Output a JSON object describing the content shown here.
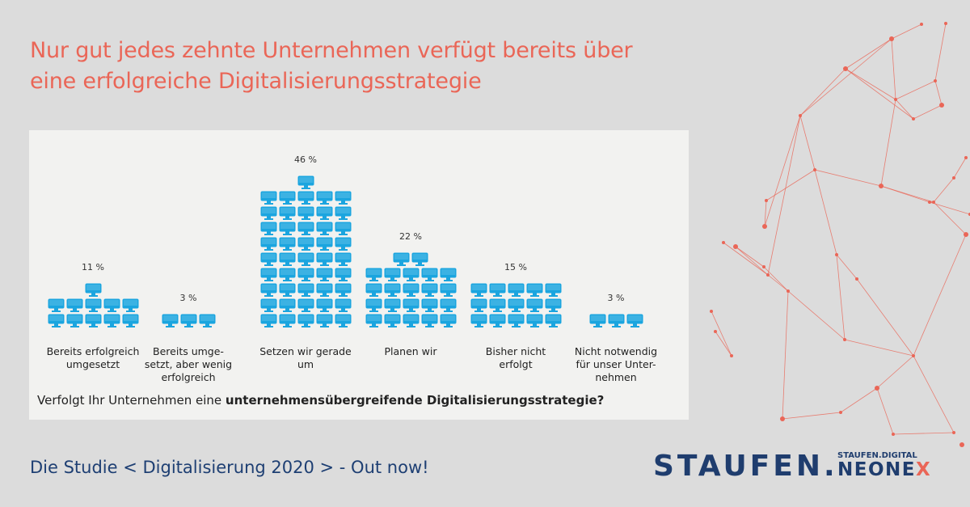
{
  "title_lines": [
    "Nur gut jedes zehnte Unternehmen verfügt bereits über",
    "eine erfolgreiche Digitalisierungsstrategie"
  ],
  "question": {
    "prefix": "Verfolgt Ihr Unternehmen eine ",
    "bold": "unternehmensübergreifende Digitalisierungsstrategie?"
  },
  "footer": "Die Studie < Digitalisierung 2020 > - Out now!",
  "logo": {
    "staufen": "STAUFEN.",
    "small": "STAUFEN.DIGITAL",
    "neonex_main": "NEONE",
    "neonex_x": "X"
  },
  "colors": {
    "title": "#ea6657",
    "icon": "#1ba5df",
    "footer": "#1e3f73",
    "network": "#ea6657"
  },
  "chart_data": {
    "type": "bar",
    "style": "pictogram (one monitor icon per percent, 5 per row)",
    "categories": [
      [
        "Bereits erfolgreich",
        "umgesetzt"
      ],
      [
        "Bereits umge-",
        "setzt, aber wenig",
        "erfolgreich"
      ],
      [
        "Setzen wir gerade",
        "um"
      ],
      [
        "Planen wir"
      ],
      [
        "Bisher nicht",
        "erfolgt"
      ],
      [
        "Nicht notwendig",
        "für unser Unter-",
        "nehmen"
      ]
    ],
    "values": [
      11,
      3,
      46,
      22,
      15,
      3
    ],
    "value_labels": [
      "11 %",
      "3 %",
      "46 %",
      "22 %",
      "15 %",
      "3 %"
    ],
    "unit": "%"
  }
}
